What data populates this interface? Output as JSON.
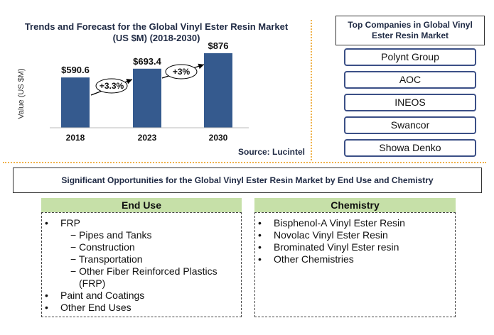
{
  "chart_data": {
    "type": "bar",
    "title": "Trends and Forecast for  the Global Vinyl Ester Resin Market\n(US $M)  (2018-2030)",
    "ylabel": "Value (US $M)",
    "xlabel": "",
    "categories": [
      "2018",
      "2023",
      "2030"
    ],
    "values": [
      590.6,
      693.4,
      876
    ],
    "data_labels": [
      "$590.6",
      "$693.4",
      "$876"
    ],
    "growth_labels": [
      "+3.3%",
      "+3%"
    ],
    "ylim": [
      0,
      1000
    ],
    "bar_color": "#355a8e",
    "source": "Source: Lucintel"
  },
  "companies": {
    "title": "Top Companies in Global Vinyl Ester Resin Market",
    "items": [
      "Polynt Group",
      "AOC",
      "INEOS",
      "Swancor",
      "Showa Denko"
    ]
  },
  "opportunities": {
    "title": "Significant Opportunities for the Global  Vinyl Ester Resin Market by End Use and Chemistry",
    "end_use": {
      "heading": "End Use",
      "fr": "FRP",
      "fr_subs": [
        "− Pipes and Tanks",
        "− Construction",
        "− Transportation",
        "− Other Fiber Reinforced Plastics (FRP)"
      ],
      "others": [
        "Paint and Coatings",
        "Other End Uses"
      ]
    },
    "chemistry": {
      "heading": "Chemistry",
      "items": [
        "Bisphenol-A Vinyl Ester Resin",
        "Novolac Vinyl Ester Resin",
        "Brominated Vinyl Ester resin",
        "Other Chemistries"
      ]
    }
  },
  "colors": {
    "accent": "#c6e0a8",
    "bar": "#355a8e",
    "divider": "#f0b24a",
    "box_border": "#3b4f86"
  }
}
